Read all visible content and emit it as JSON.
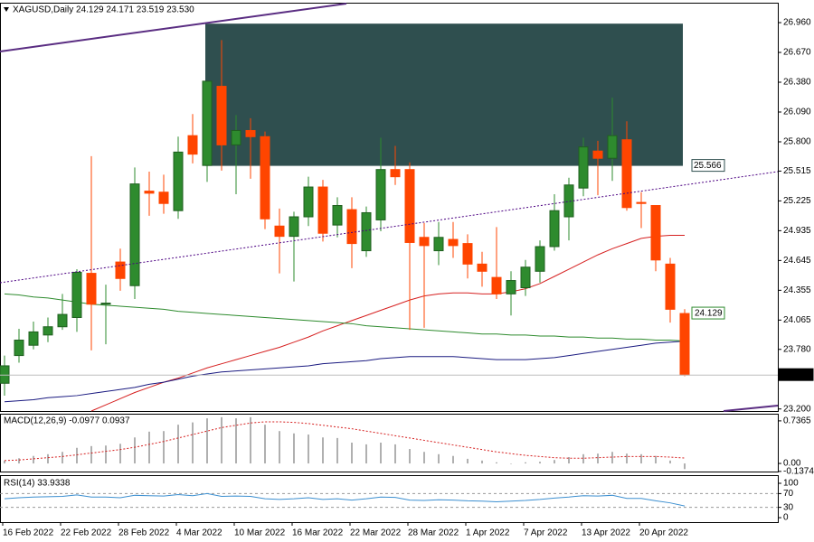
{
  "chart_data": [
    {
      "type": "candlestick",
      "title": "XAGUSD,Daily  24.129 24.171 23.519 23.530",
      "categories": [
        "16 Feb 2022",
        null,
        null,
        null,
        "22 Feb 2022",
        null,
        null,
        null,
        "28 Feb 2022",
        null,
        null,
        null,
        "4 Mar 2022",
        null,
        null,
        null,
        "10 Mar 2022",
        null,
        null,
        null,
        "16 Mar 2022",
        null,
        null,
        null,
        "22 Mar 2022",
        null,
        null,
        null,
        "28 Mar 2022",
        null,
        null,
        null,
        "1 Apr 2022",
        null,
        null,
        null,
        "7 Apr 2022",
        null,
        null,
        null,
        "13 Apr 2022",
        null,
        null,
        null,
        "20 Apr 2022",
        null,
        null,
        null
      ],
      "open": [
        23.45,
        23.72,
        23.82,
        23.92,
        24.0,
        24.09,
        24.52,
        24.22,
        24.63,
        24.4,
        25.32,
        25.31,
        25.13,
        25.86,
        25.57,
        26.34,
        25.77,
        25.91,
        25.85,
        24.98,
        24.88,
        25.07,
        25.36,
        24.99,
        25.14,
        24.74,
        25.04,
        25.53,
        25.53,
        24.87,
        24.74,
        24.85,
        24.81,
        24.61,
        24.48,
        24.32,
        24.38,
        24.54,
        24.78,
        25.07,
        25.35,
        25.71,
        25.64,
        25.82,
        25.21,
        25.18,
        24.61,
        24.129
      ],
      "high": [
        23.72,
        23.98,
        24.05,
        24.09,
        24.32,
        24.56,
        25.66,
        24.41,
        24.76,
        25.55,
        25.51,
        25.48,
        25.85,
        26.07,
        26.39,
        26.79,
        26.06,
        26.03,
        25.9,
        25.15,
        25.12,
        25.46,
        25.43,
        25.26,
        25.26,
        25.17,
        25.84,
        25.76,
        25.6,
        25.01,
        25.02,
        25.02,
        24.9,
        24.73,
        24.97,
        24.54,
        24.65,
        24.84,
        25.29,
        25.45,
        25.84,
        25.81,
        26.23,
        26.0,
        25.31,
        25.18,
        24.67,
        24.171
      ],
      "low": [
        23.33,
        23.65,
        23.78,
        23.85,
        23.97,
        23.95,
        23.77,
        23.83,
        24.35,
        24.27,
        25.08,
        25.1,
        25.05,
        25.59,
        25.41,
        25.52,
        25.29,
        25.44,
        24.95,
        24.52,
        24.44,
        24.98,
        24.83,
        24.87,
        24.57,
        24.68,
        24.93,
        25.38,
        23.97,
        23.99,
        24.6,
        24.67,
        24.47,
        24.39,
        24.27,
        24.11,
        24.3,
        24.43,
        24.74,
        24.84,
        25.27,
        25.28,
        25.42,
        25.13,
        24.96,
        24.54,
        24.04,
        23.519
      ],
      "close": [
        23.62,
        23.87,
        23.95,
        24.0,
        24.12,
        24.53,
        24.22,
        24.23,
        24.47,
        25.39,
        25.3,
        25.2,
        25.7,
        25.68,
        26.39,
        25.77,
        25.91,
        25.85,
        25.05,
        24.88,
        25.07,
        25.36,
        24.91,
        25.18,
        24.81,
        25.11,
        25.53,
        25.46,
        24.82,
        24.79,
        24.87,
        24.79,
        24.61,
        24.54,
        24.32,
        24.45,
        24.58,
        24.78,
        25.13,
        25.38,
        25.75,
        25.64,
        25.86,
        25.16,
        25.2,
        24.65,
        24.17,
        23.53
      ],
      "up_color": "#2e8b2e",
      "down_color": "#ff4500",
      "lines": [
        {
          "color": "#d62020",
          "values": [
            null,
            null,
            null,
            null,
            null,
            null,
            23.18,
            23.24,
            23.3,
            23.36,
            23.41,
            23.46,
            23.5,
            23.55,
            23.6,
            23.64,
            23.68,
            23.72,
            23.76,
            23.8,
            23.85,
            23.9,
            23.96,
            24.01,
            24.06,
            24.11,
            24.16,
            24.21,
            24.26,
            24.3,
            24.32,
            24.33,
            24.33,
            24.32,
            24.32,
            24.34,
            24.37,
            24.42,
            24.49,
            24.56,
            24.63,
            24.7,
            24.76,
            24.81,
            24.86,
            24.88,
            24.89,
            24.89
          ]
        },
        {
          "color": "#1a1a80",
          "values": [
            23.27,
            23.28,
            23.29,
            23.31,
            23.32,
            23.33,
            23.35,
            23.37,
            23.39,
            23.41,
            23.44,
            23.46,
            23.49,
            23.52,
            23.54,
            23.56,
            23.57,
            23.58,
            23.59,
            23.6,
            23.61,
            23.62,
            23.64,
            23.65,
            23.66,
            23.67,
            23.69,
            23.7,
            23.71,
            23.71,
            23.71,
            23.71,
            23.7,
            23.69,
            23.68,
            23.68,
            23.68,
            23.69,
            23.7,
            23.72,
            23.74,
            23.76,
            23.78,
            23.8,
            23.82,
            23.84,
            23.85,
            23.86
          ]
        },
        {
          "color": "#2e8b2e",
          "values": [
            24.32,
            24.31,
            24.29,
            24.28,
            24.26,
            24.24,
            24.22,
            24.21,
            24.2,
            24.19,
            24.18,
            24.17,
            24.15,
            24.14,
            24.13,
            24.12,
            24.11,
            24.1,
            24.09,
            24.08,
            24.07,
            24.06,
            24.05,
            24.04,
            24.03,
            24.01,
            24.0,
            23.99,
            23.98,
            23.97,
            23.96,
            23.95,
            23.94,
            23.93,
            23.93,
            23.92,
            23.92,
            23.91,
            23.91,
            23.9,
            23.9,
            23.89,
            23.89,
            23.88,
            23.88,
            23.87,
            23.87,
            23.86
          ]
        }
      ],
      "zone": {
        "low": 25.566,
        "high": 26.95,
        "color": "#2f4f4f"
      },
      "price_labels": [
        24.129,
        {
          "value": 23.53,
          "label": "23.530"
        }
      ],
      "price_label_colors": [
        "#2e8b2e",
        "#000000"
      ],
      "price_label_filled": [
        false,
        true
      ],
      "ylim": [
        23.18,
        27.145
      ],
      "yticks": [
        {
          "value": 26.96,
          "label": "26.960"
        },
        {
          "value": 26.67,
          "label": "26.670"
        },
        {
          "value": 26.38,
          "label": "26.380"
        },
        {
          "value": 26.09,
          "label": "26.090"
        },
        {
          "value": 25.8,
          "label": "25.800"
        },
        25.515,
        25.225,
        24.935,
        24.645,
        24.355,
        24.065,
        {
          "value": 23.78,
          "label": "23.780"
        },
        {
          "value": 23.2,
          "label": "23.200"
        }
      ]
    },
    {
      "type": "histogram-line",
      "title": "MACD(12,26,9) -0.0977 0.0937",
      "bar_color": "#b0b0b0",
      "line_color": "#d62020",
      "bars": [
        0.05,
        0.09,
        0.13,
        0.16,
        0.2,
        0.27,
        0.3,
        0.31,
        0.34,
        0.45,
        0.55,
        0.56,
        0.67,
        0.71,
        0.78,
        0.8,
        0.78,
        0.8,
        0.67,
        0.56,
        0.52,
        0.5,
        0.45,
        0.44,
        0.36,
        0.33,
        0.36,
        0.33,
        0.25,
        0.2,
        0.16,
        0.13,
        0.08,
        0.05,
        0.02,
        0.0,
        0.02,
        0.03,
        0.06,
        0.11,
        0.16,
        0.17,
        0.2,
        0.17,
        0.16,
        0.13,
        0.05,
        -0.0977
      ],
      "signal": [
        0.05,
        0.06,
        0.08,
        0.1,
        0.12,
        0.15,
        0.18,
        0.21,
        0.24,
        0.28,
        0.33,
        0.38,
        0.44,
        0.5,
        0.56,
        0.62,
        0.66,
        0.7,
        0.72,
        0.72,
        0.71,
        0.69,
        0.66,
        0.63,
        0.6,
        0.56,
        0.52,
        0.48,
        0.44,
        0.4,
        0.36,
        0.32,
        0.28,
        0.24,
        0.2,
        0.17,
        0.14,
        0.12,
        0.1,
        0.09,
        0.09,
        0.1,
        0.11,
        0.12,
        0.12,
        0.12,
        0.11,
        0.0937
      ],
      "ylim": [
        -0.14,
        0.86
      ],
      "yticks": [
        0.7365,
        {
          "value": 0,
          "label": "0.00"
        },
        -0.1374
      ]
    },
    {
      "type": "line",
      "title": "RSI(14) 33.9338",
      "color": "#3c8fd0",
      "values": [
        55,
        58,
        60,
        61,
        62,
        66,
        60,
        60,
        58,
        65,
        64,
        63,
        67,
        64,
        70,
        62,
        63,
        62,
        55,
        53,
        55,
        58,
        53,
        55,
        51,
        55,
        60,
        59,
        51,
        50,
        52,
        51,
        49,
        48,
        46,
        48,
        50,
        53,
        57,
        60,
        64,
        63,
        65,
        56,
        56,
        49,
        43,
        33.9338
      ],
      "levels": [
        70,
        30
      ],
      "ylim": [
        -13,
        121
      ],
      "yticks": [
        100,
        70,
        30,
        0
      ]
    }
  ]
}
